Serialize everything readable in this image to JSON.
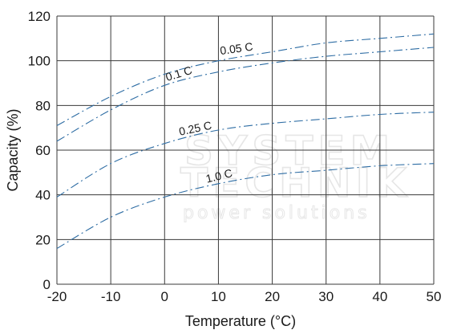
{
  "watermark": {
    "line1": "SYSTEM",
    "line2": "TECHNIK",
    "line3": "power solutions"
  },
  "chart_data": {
    "type": "line",
    "title": "",
    "xlabel": "Temperature (°C)",
    "ylabel": "Capacity (%)",
    "xlim": [
      -20,
      50
    ],
    "ylim": [
      0,
      120
    ],
    "xticks": [
      -20,
      -10,
      0,
      10,
      20,
      30,
      40,
      50
    ],
    "yticks": [
      0,
      20,
      40,
      60,
      80,
      100,
      120
    ],
    "grid": true,
    "line_color": "#2e6da4",
    "line_style": "dash-dot",
    "series": [
      {
        "name": "0.05 C",
        "x": [
          -20,
          -10,
          0,
          10,
          20,
          30,
          40,
          50
        ],
        "y": [
          71,
          84,
          94,
          100,
          104,
          108,
          110,
          112
        ]
      },
      {
        "name": "0.1 C",
        "x": [
          -20,
          -10,
          0,
          10,
          20,
          30,
          40,
          50
        ],
        "y": [
          64,
          78,
          89,
          95,
          99,
          102,
          104,
          106
        ]
      },
      {
        "name": "0.25 C",
        "x": [
          -20,
          -10,
          0,
          10,
          20,
          30,
          40,
          50
        ],
        "y": [
          39,
          54,
          63,
          69,
          72,
          74,
          76,
          77
        ]
      },
      {
        "name": "1.0 C",
        "x": [
          -20,
          -10,
          0,
          10,
          20,
          30,
          40,
          50
        ],
        "y": [
          16,
          30,
          39,
          45,
          49,
          51,
          53,
          54
        ]
      }
    ]
  }
}
